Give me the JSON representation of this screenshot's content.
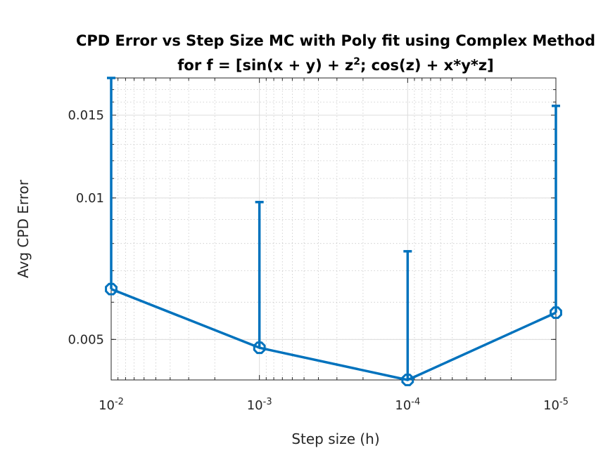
{
  "chart_data": {
    "type": "line",
    "title_line1": "CPD Error vs Step Size MC with Poly fit using Complex Method",
    "title_line2_prefix": "for f = [sin(x + y) + z",
    "title_line2_sup": "2",
    "title_line2_suffix": "; cos(z) + x*y*z]",
    "xlabel": "Step size (h)",
    "ylabel": "Avg CPD Error",
    "x_scale": "log-reversed",
    "y_scale": "log",
    "x_tick_labels": [
      {
        "base": "10",
        "exp": "-2",
        "value": 0.01
      },
      {
        "base": "10",
        "exp": "-3",
        "value": 0.001
      },
      {
        "base": "10",
        "exp": "-4",
        "value": 0.0001
      },
      {
        "base": "10",
        "exp": "-5",
        "value": 1e-05
      }
    ],
    "y_ticks": [
      {
        "label": "0.005",
        "value": 0.005
      },
      {
        "label": "0.01",
        "value": 0.01
      },
      {
        "label": "0.015",
        "value": 0.015
      }
    ],
    "xlim": [
      0.01,
      1e-05
    ],
    "ylim": [
      0.0041,
      0.018
    ],
    "grid": true,
    "minor_grid": true,
    "color": "#0072BD",
    "series": [
      {
        "x": [
          0.01,
          0.001,
          0.0001,
          1e-05
        ],
        "y": [
          0.0064,
          0.0048,
          0.0041,
          0.0057
        ],
        "err_upper": [
          0.018,
          0.0098,
          0.0077,
          0.0157
        ]
      }
    ]
  }
}
